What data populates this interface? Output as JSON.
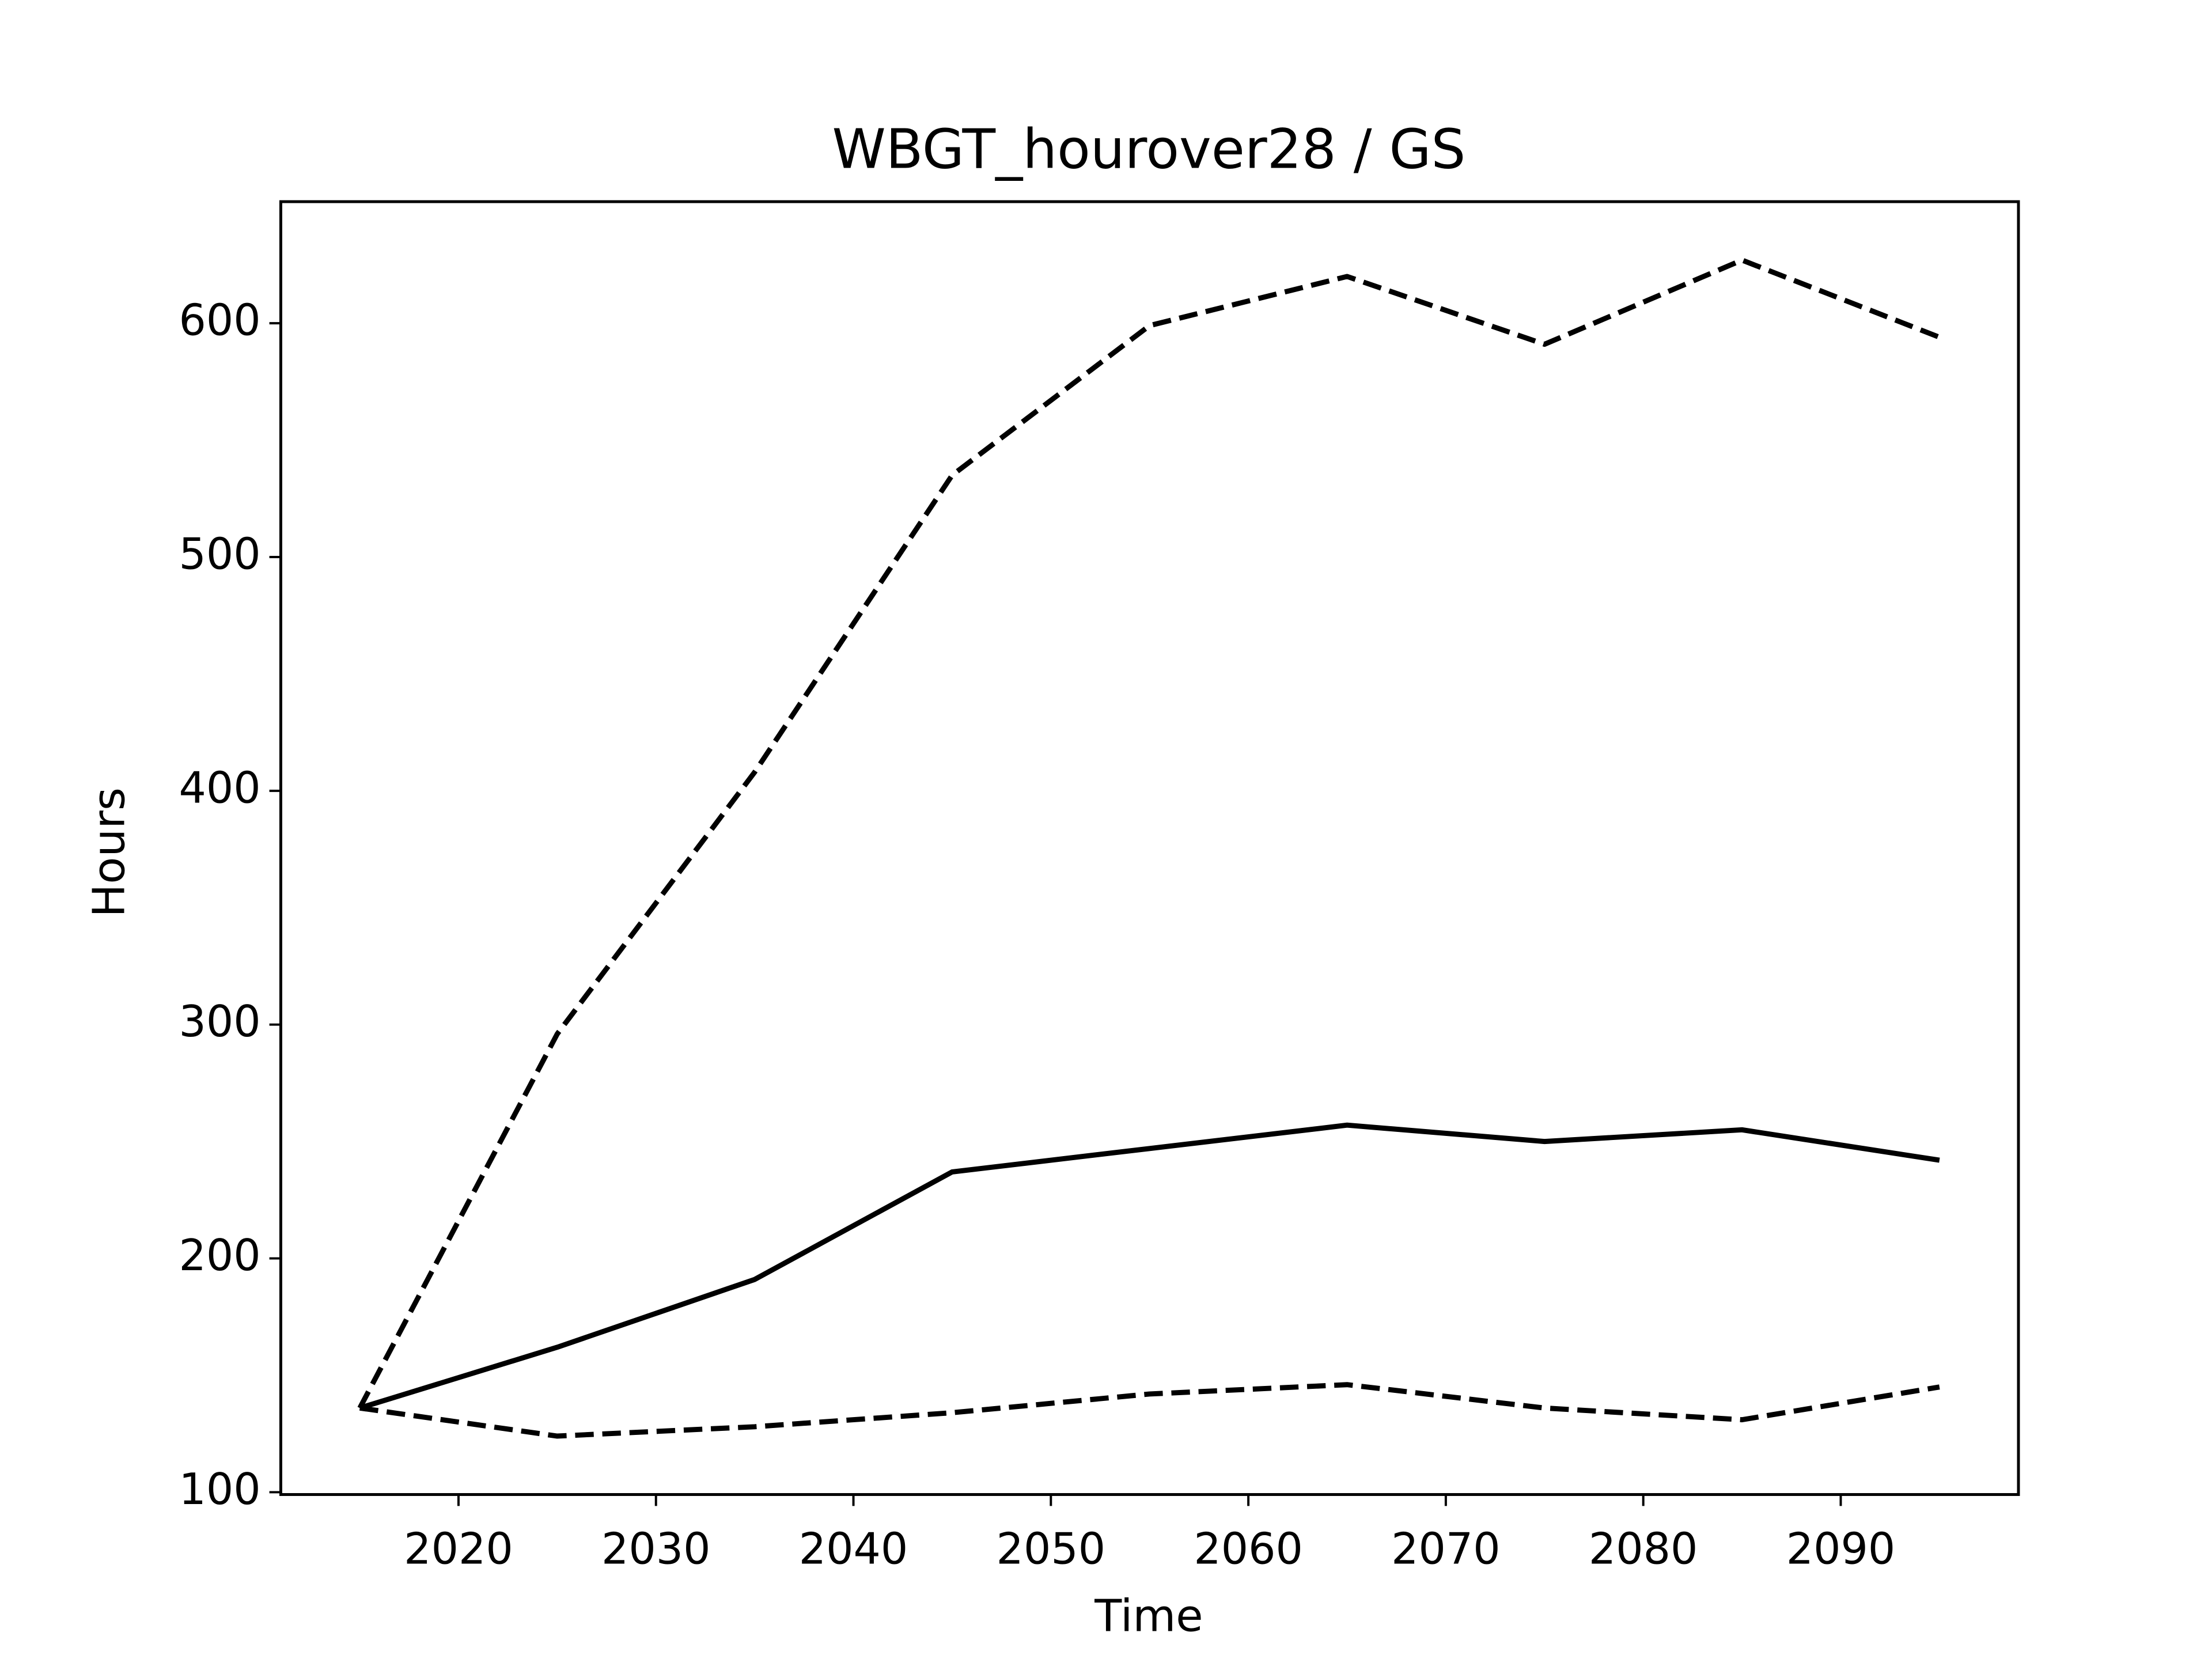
{
  "chart_data": {
    "type": "line",
    "title": "WBGT_hourover28 / GS",
    "xlabel": "Time",
    "ylabel": "Hours",
    "x": [
      2015,
      2025,
      2035,
      2045,
      2055,
      2065,
      2075,
      2085,
      2095
    ],
    "series": [
      {
        "color": "#000000",
        "dash": "dashed",
        "values": [
          136,
          296,
          408,
          535,
          599,
          620,
          591,
          627,
          594
        ]
      },
      {
        "color": "#000000",
        "dash": "solid",
        "values": [
          136,
          162,
          191,
          237,
          247,
          257,
          250,
          255,
          242
        ]
      },
      {
        "color": "#000000",
        "dash": "dashed",
        "values": [
          136,
          124,
          128,
          134,
          142,
          146,
          136,
          131,
          145
        ]
      }
    ],
    "xlim": [
      2011,
      2099
    ],
    "ylim": [
      99,
      652
    ],
    "xticks": [
      2020,
      2030,
      2040,
      2050,
      2060,
      2070,
      2080,
      2090
    ],
    "yticks": [
      100,
      200,
      300,
      400,
      500,
      600
    ],
    "grid": false
  }
}
